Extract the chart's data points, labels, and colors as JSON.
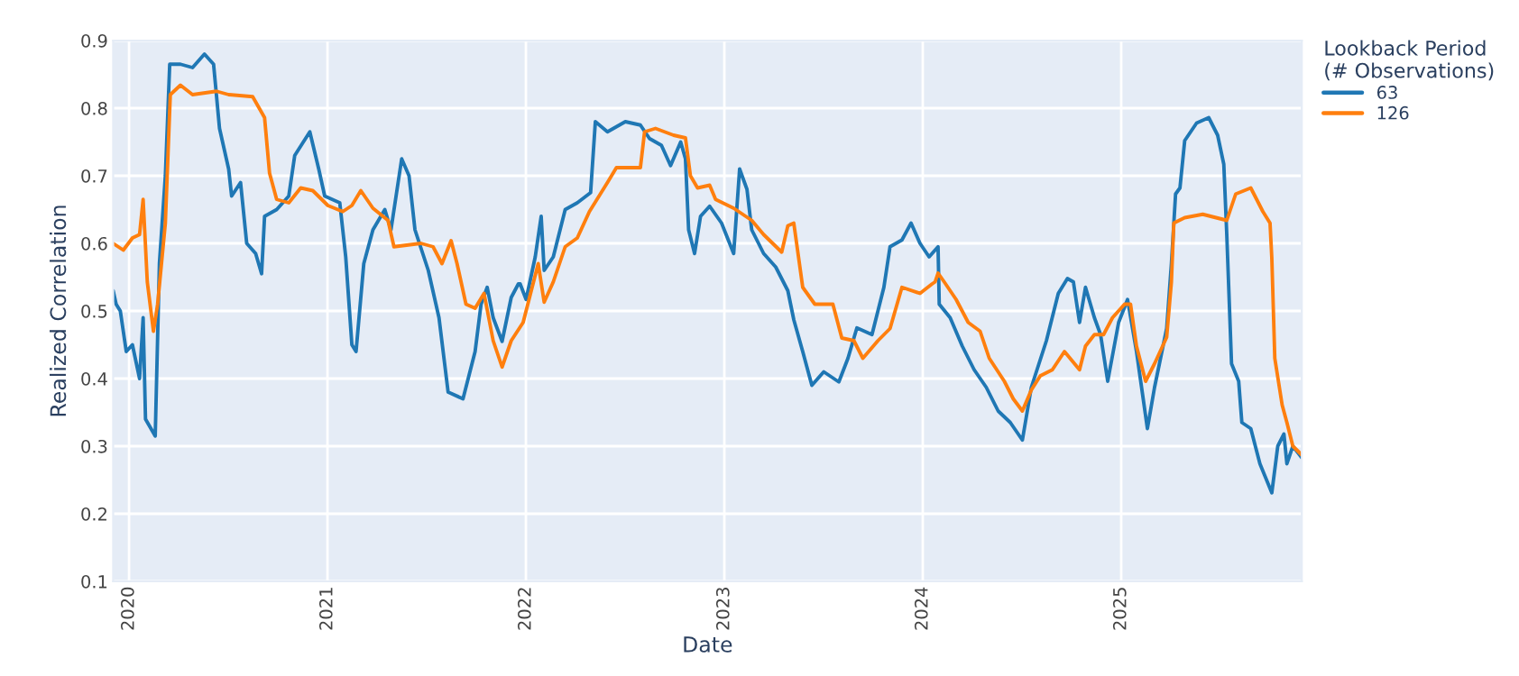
{
  "chart_data": {
    "type": "line",
    "xlabel": "Date",
    "ylabel": "Realized Correlation",
    "legend_title": "Lookback Period\n(# Observations)",
    "legend": "top right",
    "grid": true,
    "xlim": [
      2019.92,
      2025.91
    ],
    "xticks": [
      2020,
      2021,
      2022,
      2023,
      2024,
      2025
    ],
    "ylim": [
      0.1,
      0.9
    ],
    "yticks": [
      0.1,
      0.2,
      0.3,
      0.4,
      0.5,
      0.6,
      0.7,
      0.8,
      0.9
    ],
    "series": [
      {
        "name": "63",
        "color": "#1f77b4",
        "x": [
          2019.92,
          2019.935,
          2019.956,
          2019.986,
          2020.017,
          2020.053,
          2020.071,
          2020.083,
          2020.132,
          2020.153,
          2020.183,
          2020.205,
          2020.259,
          2020.32,
          2020.38,
          2020.426,
          2020.456,
          2020.502,
          2020.517,
          2020.562,
          2020.593,
          2020.638,
          2020.668,
          2020.683,
          2020.744,
          2020.805,
          2020.835,
          2020.911,
          2020.956,
          2020.986,
          2021.062,
          2021.092,
          2021.123,
          2021.144,
          2021.183,
          2021.229,
          2021.289,
          2021.32,
          2021.374,
          2021.411,
          2021.441,
          2021.508,
          2021.562,
          2021.608,
          2021.683,
          2021.744,
          2021.774,
          2021.805,
          2021.835,
          2021.88,
          2021.926,
          2021.962,
          2021.971,
          2022.001,
          2022.047,
          2022.077,
          2022.092,
          2022.138,
          2022.198,
          2022.259,
          2022.326,
          2022.35,
          2022.411,
          2022.501,
          2022.577,
          2022.623,
          2022.683,
          2022.729,
          2022.78,
          2022.804,
          2022.82,
          2022.85,
          2022.88,
          2022.926,
          2022.986,
          2023.047,
          2023.077,
          2023.114,
          2023.138,
          2023.198,
          2023.259,
          2023.32,
          2023.35,
          2023.395,
          2023.441,
          2023.501,
          2023.577,
          2023.623,
          2023.668,
          2023.744,
          2023.804,
          2023.835,
          2023.895,
          2023.941,
          2023.986,
          2024.032,
          2024.077,
          2024.083,
          2024.138,
          2024.199,
          2024.259,
          2024.32,
          2024.38,
          2024.441,
          2024.502,
          2024.547,
          2024.623,
          2024.683,
          2024.729,
          2024.759,
          2024.79,
          2024.82,
          2024.865,
          2024.896,
          2024.932,
          2024.987,
          2025.032,
          2025.077,
          2025.132,
          2025.168,
          2025.229,
          2025.253,
          2025.274,
          2025.296,
          2025.32,
          2025.38,
          2025.441,
          2025.486,
          2025.517,
          2025.532,
          2025.556,
          2025.592,
          2025.608,
          2025.653,
          2025.699,
          2025.759,
          2025.789,
          2025.82,
          2025.835,
          2025.865,
          2025.91
        ],
        "values": [
          0.53,
          0.51,
          0.5,
          0.44,
          0.45,
          0.4,
          0.49,
          0.34,
          0.315,
          0.57,
          0.7,
          0.865,
          0.865,
          0.86,
          0.88,
          0.865,
          0.77,
          0.71,
          0.67,
          0.69,
          0.6,
          0.585,
          0.555,
          0.64,
          0.65,
          0.67,
          0.73,
          0.765,
          0.71,
          0.67,
          0.66,
          0.58,
          0.45,
          0.44,
          0.57,
          0.62,
          0.65,
          0.62,
          0.725,
          0.7,
          0.62,
          0.56,
          0.49,
          0.38,
          0.37,
          0.44,
          0.51,
          0.535,
          0.49,
          0.455,
          0.52,
          0.54,
          0.54,
          0.517,
          0.58,
          0.64,
          0.56,
          0.58,
          0.65,
          0.66,
          0.675,
          0.78,
          0.765,
          0.78,
          0.775,
          0.755,
          0.745,
          0.715,
          0.75,
          0.725,
          0.62,
          0.585,
          0.64,
          0.655,
          0.63,
          0.585,
          0.71,
          0.68,
          0.62,
          0.585,
          0.565,
          0.53,
          0.487,
          0.44,
          0.39,
          0.41,
          0.395,
          0.43,
          0.475,
          0.465,
          0.535,
          0.595,
          0.605,
          0.63,
          0.6,
          0.58,
          0.595,
          0.51,
          0.49,
          0.448,
          0.413,
          0.387,
          0.352,
          0.335,
          0.309,
          0.387,
          0.456,
          0.526,
          0.548,
          0.543,
          0.483,
          0.535,
          0.49,
          0.465,
          0.396,
          0.483,
          0.517,
          0.44,
          0.326,
          0.387,
          0.474,
          0.57,
          0.673,
          0.682,
          0.752,
          0.778,
          0.786,
          0.76,
          0.717,
          0.613,
          0.422,
          0.396,
          0.335,
          0.326,
          0.274,
          0.231,
          0.3,
          0.318,
          0.274,
          0.3,
          0.283
        ]
      },
      {
        "name": "126",
        "color": "#ff7f0e",
        "x": [
          2019.92,
          2019.971,
          2020.017,
          2020.053,
          2020.071,
          2020.092,
          2020.123,
          2020.144,
          2020.183,
          2020.208,
          2020.259,
          2020.32,
          2020.441,
          2020.502,
          2020.623,
          2020.683,
          2020.708,
          2020.744,
          2020.805,
          2020.865,
          2020.926,
          2021.002,
          2021.077,
          2021.123,
          2021.168,
          2021.229,
          2021.305,
          2021.335,
          2021.471,
          2021.532,
          2021.577,
          2021.623,
          2021.653,
          2021.698,
          2021.744,
          2021.789,
          2021.835,
          2021.88,
          2021.926,
          2021.986,
          2022.062,
          2022.092,
          2022.138,
          2022.198,
          2022.259,
          2022.32,
          2022.411,
          2022.456,
          2022.577,
          2022.598,
          2022.653,
          2022.744,
          2022.804,
          2022.829,
          2022.865,
          2022.926,
          2022.956,
          2023.047,
          2023.138,
          2023.198,
          2023.289,
          2023.32,
          2023.35,
          2023.395,
          2023.456,
          2023.547,
          2023.592,
          2023.653,
          2023.698,
          2023.774,
          2023.835,
          2023.895,
          2023.986,
          2024.047,
          2024.062,
          2024.077,
          2024.108,
          2024.168,
          2024.229,
          2024.289,
          2024.335,
          2024.411,
          2024.456,
          2024.502,
          2024.547,
          2024.592,
          2024.653,
          2024.714,
          2024.79,
          2024.82,
          2024.865,
          2024.911,
          2024.956,
          2025.017,
          2025.047,
          2025.077,
          2025.123,
          2025.168,
          2025.229,
          2025.253,
          2025.265,
          2025.32,
          2025.411,
          2025.532,
          2025.577,
          2025.653,
          2025.714,
          2025.75,
          2025.759,
          2025.774,
          2025.811,
          2025.835,
          2025.865,
          2025.91
        ],
        "values": [
          0.6,
          0.59,
          0.608,
          0.613,
          0.665,
          0.543,
          0.47,
          0.51,
          0.63,
          0.82,
          0.834,
          0.82,
          0.825,
          0.82,
          0.817,
          0.786,
          0.704,
          0.665,
          0.66,
          0.682,
          0.678,
          0.656,
          0.647,
          0.656,
          0.678,
          0.652,
          0.634,
          0.595,
          0.6,
          0.595,
          0.57,
          0.604,
          0.57,
          0.51,
          0.504,
          0.526,
          0.456,
          0.417,
          0.456,
          0.483,
          0.57,
          0.513,
          0.543,
          0.595,
          0.608,
          0.647,
          0.69,
          0.712,
          0.712,
          0.765,
          0.77,
          0.76,
          0.756,
          0.7,
          0.682,
          0.686,
          0.665,
          0.652,
          0.634,
          0.613,
          0.587,
          0.626,
          0.63,
          0.535,
          0.51,
          0.51,
          0.46,
          0.456,
          0.43,
          0.456,
          0.474,
          0.535,
          0.526,
          0.54,
          0.543,
          0.556,
          0.543,
          0.517,
          0.483,
          0.47,
          0.43,
          0.396,
          0.37,
          0.352,
          0.383,
          0.404,
          0.413,
          0.44,
          0.413,
          0.448,
          0.465,
          0.465,
          0.49,
          0.51,
          0.51,
          0.448,
          0.396,
          0.422,
          0.461,
          0.543,
          0.63,
          0.638,
          0.643,
          0.634,
          0.673,
          0.682,
          0.647,
          0.63,
          0.578,
          0.43,
          0.361,
          0.335,
          0.3,
          0.287
        ]
      }
    ]
  }
}
